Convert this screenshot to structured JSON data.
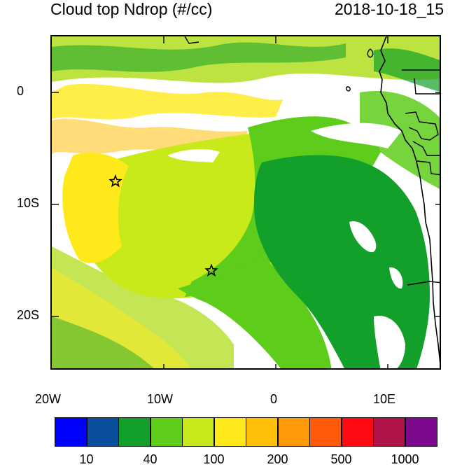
{
  "header": {
    "title": "Cloud top Ndrop (#/cc)",
    "datetime": "2018-10-18_15"
  },
  "map": {
    "x_ticks": [
      "20W",
      "10W",
      "0",
      "10E"
    ],
    "y_ticks": [
      "0",
      "10S",
      "20S"
    ],
    "markers": [
      {
        "name": "star-marker-1",
        "lon": -14.3,
        "lat": -8.0
      },
      {
        "name": "star-marker-2",
        "lon": -5.7,
        "lat": -16.0
      }
    ]
  },
  "colorbar": {
    "colors": [
      "#0000ff",
      "#0a4f9c",
      "#12a02a",
      "#5ecc1a",
      "#c8ea1a",
      "#ffe91a",
      "#ffbf0a",
      "#ff9a0a",
      "#ff5a0a",
      "#ff0a12",
      "#b0124a",
      "#7d0a8c"
    ],
    "labels": [
      "10",
      "40",
      "100",
      "200",
      "500",
      "1000"
    ]
  }
}
